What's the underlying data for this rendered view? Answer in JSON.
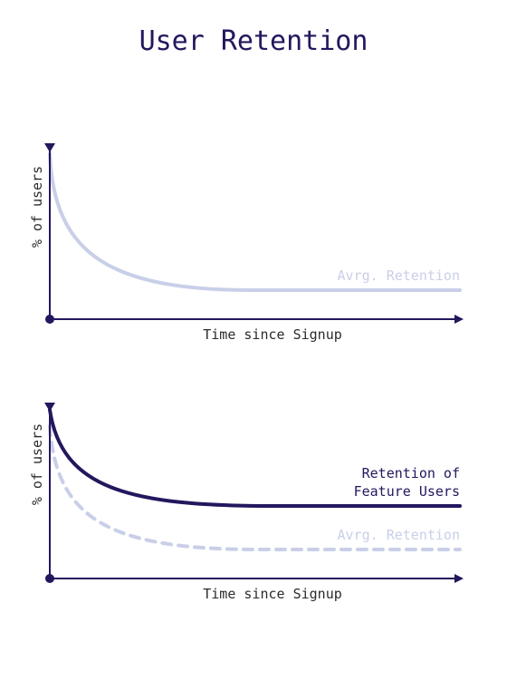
{
  "title": "User Retention",
  "colors": {
    "primary": "#24175e",
    "light": "#c9cfe8",
    "text": "#2b2b2b"
  },
  "panels": [
    {
      "ylabel": "% of users",
      "xlabel": "Time since Signup",
      "labels": [
        {
          "lines": [
            "Avrg. Retention"
          ],
          "color": "#c9cfe8"
        }
      ]
    },
    {
      "ylabel": "% of users",
      "xlabel": "Time since Signup",
      "labels": [
        {
          "lines": [
            "Retention of",
            "Feature Users"
          ],
          "color": "#24175e"
        },
        {
          "lines": [
            "Avrg. Retention"
          ],
          "color": "#c9cfe8"
        }
      ]
    }
  ]
}
